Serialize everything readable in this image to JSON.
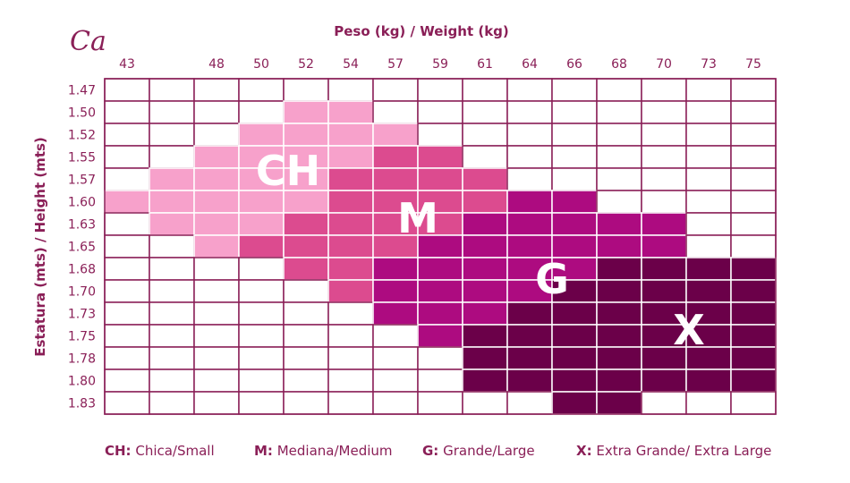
{
  "logo_text": "Ca",
  "chart_data": {
    "type": "heatmap",
    "title": "Peso (kg) / Weight (kg)",
    "ylabel": "Estatura (mts) / Height (mts)",
    "x_ticks": [
      "43",
      "",
      "48",
      "50",
      "52",
      "54",
      "57",
      "59",
      "61",
      "64",
      "66",
      "68",
      "70",
      "73",
      "75"
    ],
    "y_ticks": [
      "1.47",
      "1.50",
      "1.52",
      "1.55",
      "1.57",
      "1.60",
      "1.63",
      "1.65",
      "1.68",
      "1.70",
      "1.73",
      "1.75",
      "1.78",
      "1.80",
      "1.83"
    ],
    "sizes": [
      {
        "code": "CH",
        "name": "Chica/Small",
        "color": "#f7a1cb"
      },
      {
        "code": "M",
        "name": "Mediana/Medium",
        "color": "#dc4b8f"
      },
      {
        "code": "G",
        "name": "Grande/Large",
        "color": "#ad0b80"
      },
      {
        "code": "X",
        "name": "Extra Grande/ Extra Large",
        "color": "#6b0049"
      }
    ],
    "grid": [
      "...............",
      "....CC.........",
      "...CCCC........",
      "..CCCCMM.......",
      ".CCCCMMMM......",
      "CCCCCMMMMGG....",
      ".CCCMMMMGGGGG..",
      "..CMMMMGGGGGG..",
      "....MMGGGGGXXXX",
      ".....MGGGGXXXXX",
      "......GGGXXXXXX",
      ".......GXXXXXXX",
      "........XXXXXXX",
      "........XXXXXXX",
      "..........XX..."
    ],
    "grid_lines": true
  },
  "legend": [
    {
      "key": "CH:",
      "text": "Chica/Small"
    },
    {
      "key": "M:",
      "text": "Mediana/Medium"
    },
    {
      "key": "G:",
      "text": "Grande/Large"
    },
    {
      "key": "X:",
      "text": "Extra Grande/ Extra Large"
    }
  ]
}
